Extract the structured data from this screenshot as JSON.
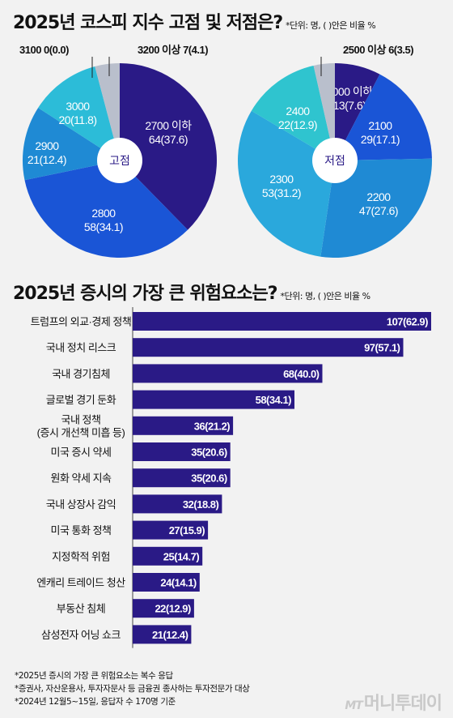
{
  "header": {
    "title1": "2025년 코스피 지수 고점 및 저점은?",
    "unit1": "*단위: 명, ( )안은 비율 %",
    "title2": "2025년 증시의 가장 큰 위험요소는?",
    "unit2": "*단위: 명, ( )안은 비율 %"
  },
  "chart_data": [
    {
      "type": "pie",
      "center_label": "고점",
      "slices": [
        {
          "label": "2700 이하",
          "value": 64,
          "pct": "37.6",
          "color": "#2a1a86"
        },
        {
          "label": "2800",
          "value": 58,
          "pct": "34.1",
          "color": "#1a55d6"
        },
        {
          "label": "2900",
          "value": 21,
          "pct": "12.4",
          "color": "#1f8ad4"
        },
        {
          "label": "3000",
          "value": 20,
          "pct": "11.8",
          "color": "#2cbcd8"
        },
        {
          "label": "3100",
          "value": 0,
          "pct": "0.0",
          "color": "#2cbcd8"
        },
        {
          "label": "3200 이상",
          "value": 7,
          "pct": "4.1",
          "color": "#b9bfcc"
        }
      ]
    },
    {
      "type": "pie",
      "center_label": "저점",
      "slices": [
        {
          "label": "2000 이하",
          "value": 13,
          "pct": "7.6",
          "color": "#2a1a86"
        },
        {
          "label": "2100",
          "value": 29,
          "pct": "17.1",
          "color": "#1a55d6"
        },
        {
          "label": "2200",
          "value": 47,
          "pct": "27.6",
          "color": "#1f8ad4"
        },
        {
          "label": "2300",
          "value": 53,
          "pct": "31.2",
          "color": "#2aa8dc"
        },
        {
          "label": "2400",
          "value": 22,
          "pct": "12.9",
          "color": "#2fc4cf"
        },
        {
          "label": "2500 이상",
          "value": 6,
          "pct": "3.5",
          "color": "#b9bfcc"
        }
      ]
    },
    {
      "type": "bar",
      "orientation": "horizontal",
      "bar_color": "#2a1a86",
      "categories": [
        "트럼프의 외교·경제 정책",
        "국내 정치 리스크",
        "국내 경기침체",
        "글로벌 경기 둔화",
        "국내 정책|(증시 개선책 미흡 등)",
        "미국 증시 약세",
        "원화 약세 지속",
        "국내 상장사 감익",
        "미국 통화 정책",
        "지정학적 위험",
        "엔캐리 트레이드 청산",
        "부동산 침체",
        "삼성전자 어닝 쇼크"
      ],
      "values": [
        107,
        97,
        68,
        58,
        36,
        35,
        35,
        32,
        27,
        25,
        24,
        22,
        21
      ],
      "percents": [
        "62.9",
        "57.1",
        "40.0",
        "34.1",
        "21.2",
        "20.6",
        "20.6",
        "18.8",
        "15.9",
        "14.7",
        "14.1",
        "12.9",
        "12.4"
      ],
      "xlim": [
        0,
        107
      ]
    }
  ],
  "footnotes": [
    "*2025년 증시의 가장 큰 위험요소는 복수 응답",
    "*증권사, 자산운용사, 투자자문사 등 금융권 종사하는 투자전문가 대상",
    "*2024년 12월5~15일, 응답자 수 170명 기준"
  ],
  "logo": {
    "mt": "MT",
    "name": "머니투데이"
  }
}
